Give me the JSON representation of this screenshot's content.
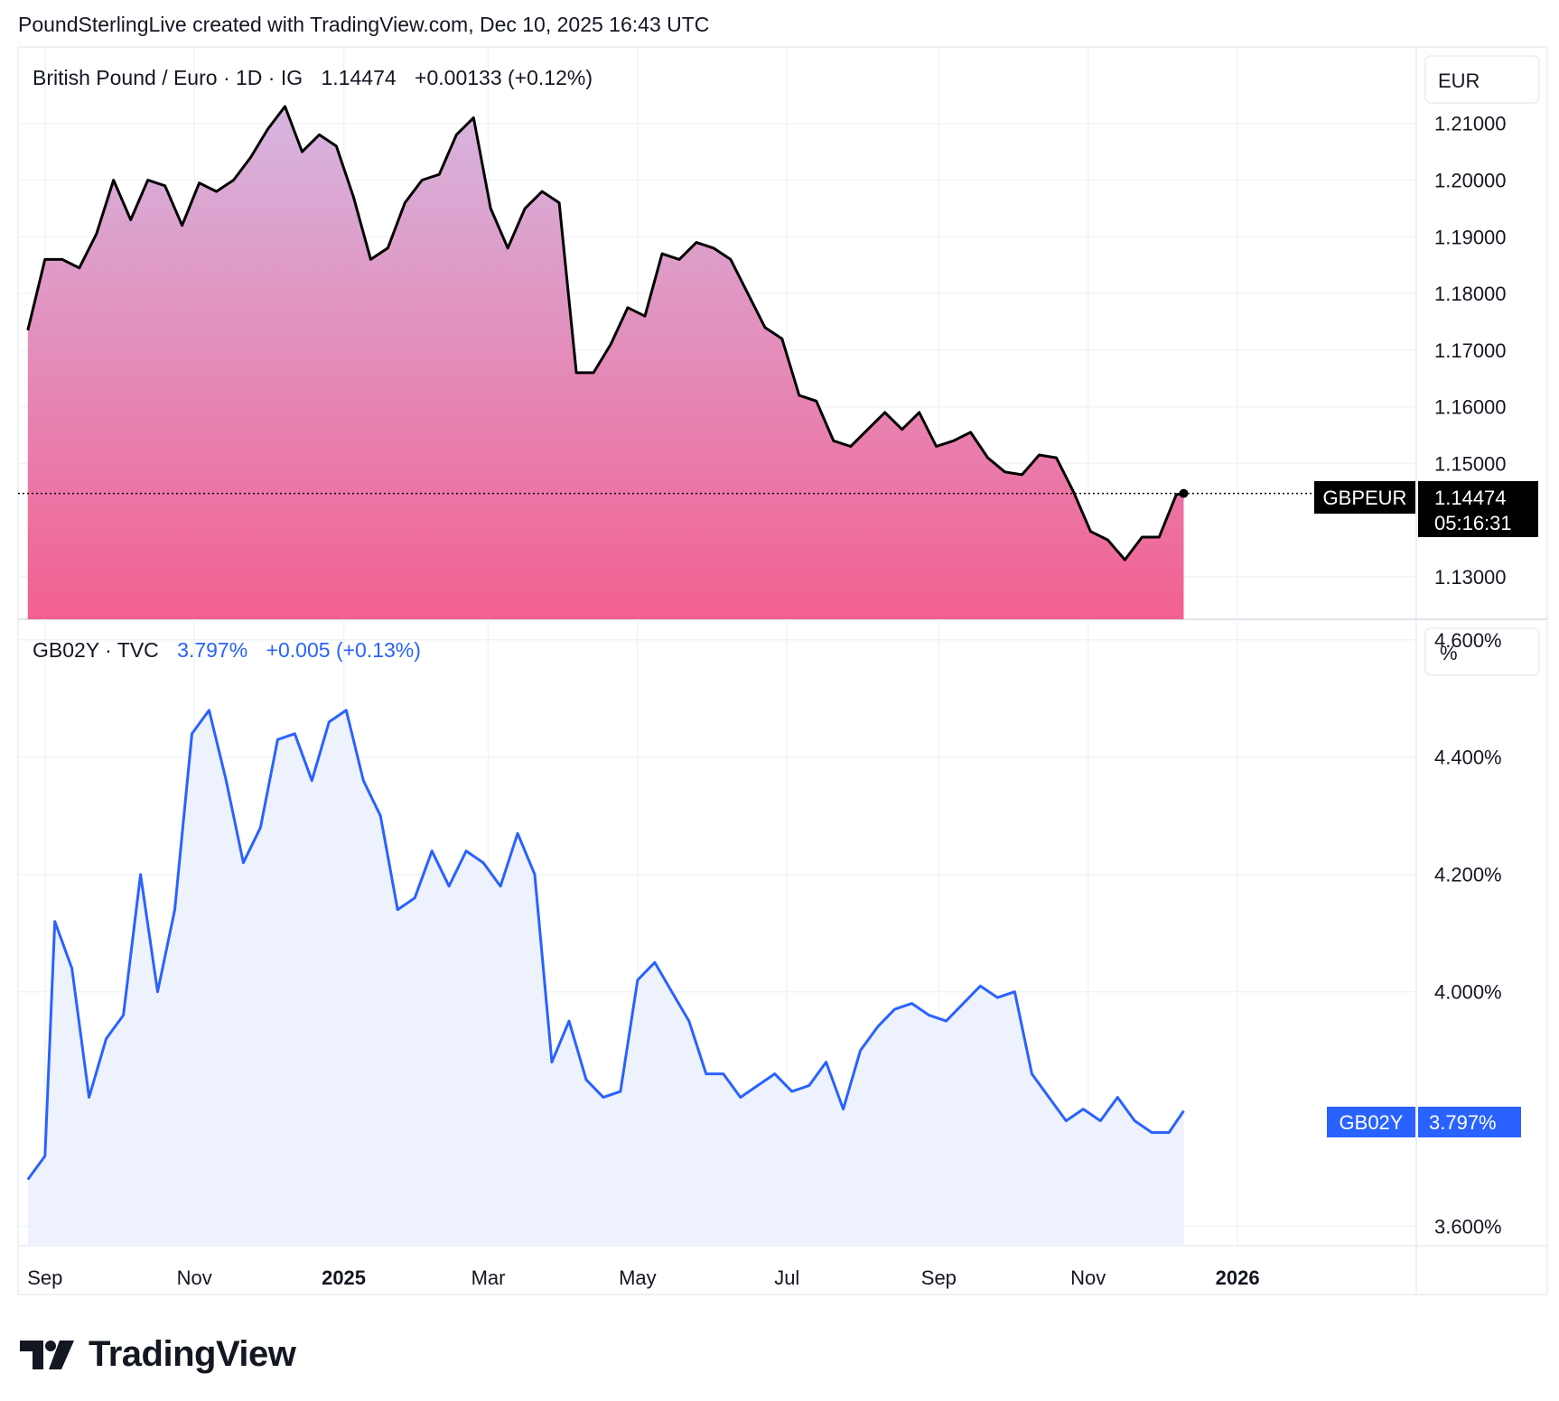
{
  "header": {
    "credit": "PoundSterlingLive created with TradingView.com, Dec 10, 2025 16:43 UTC"
  },
  "logo": {
    "text": "TradingView",
    "icon": "tradingview-logo-icon"
  },
  "colors": {
    "gbpeur_line": "#000000",
    "gbpeur_fill_top": "#d6b6e0",
    "gbpeur_fill_bottom": "#f26091",
    "gb02y_line": "#2962ff",
    "gb02y_fill": "#eef2fd",
    "grid": "#f0f3fa",
    "label_bg_dark": "#000000",
    "label_bg_blue": "#2962ff"
  },
  "x_axis": {
    "ticks": [
      {
        "label": "Sep",
        "bold": false,
        "date": "2024-09-01"
      },
      {
        "label": "Nov",
        "bold": false,
        "date": "2024-11-01"
      },
      {
        "label": "2025",
        "bold": true,
        "date": "2025-01-01"
      },
      {
        "label": "Mar",
        "bold": false,
        "date": "2025-03-01"
      },
      {
        "label": "May",
        "bold": false,
        "date": "2025-05-01"
      },
      {
        "label": "Jul",
        "bold": false,
        "date": "2025-07-01"
      },
      {
        "label": "Sep",
        "bold": false,
        "date": "2025-09-01"
      },
      {
        "label": "Nov",
        "bold": false,
        "date": "2025-11-01"
      },
      {
        "label": "2026",
        "bold": true,
        "date": "2026-01-01"
      }
    ]
  },
  "chart_data": [
    {
      "type": "area",
      "legend": {
        "symbol": "British Pound / Euro · 1D · IG",
        "last": "1.14474",
        "change": "+0.00133 (+0.12%)"
      },
      "unit_label": "EUR",
      "price_label": {
        "name": "GBPEUR",
        "value": "1.14474",
        "countdown": "05:16:31"
      },
      "y_ticks": [
        "1.21000",
        "1.20000",
        "1.19000",
        "1.18000",
        "1.17000",
        "1.16000",
        "1.15000",
        "1.13000"
      ],
      "y_tick_values": [
        1.21,
        1.2,
        1.19,
        1.18,
        1.17,
        1.16,
        1.15,
        1.13
      ],
      "ylim": [
        1.1225,
        1.2235
      ],
      "x": [
        "2024-08-25",
        "2024-09-01",
        "2024-09-08",
        "2024-09-15",
        "2024-09-22",
        "2024-09-29",
        "2024-10-06",
        "2024-10-13",
        "2024-10-20",
        "2024-10-27",
        "2024-11-03",
        "2024-11-10",
        "2024-11-17",
        "2024-11-24",
        "2024-12-01",
        "2024-12-08",
        "2024-12-15",
        "2024-12-22",
        "2024-12-29",
        "2025-01-05",
        "2025-01-12",
        "2025-01-19",
        "2025-01-26",
        "2025-02-02",
        "2025-02-09",
        "2025-02-16",
        "2025-02-23",
        "2025-03-02",
        "2025-03-09",
        "2025-03-16",
        "2025-03-23",
        "2025-03-30",
        "2025-04-06",
        "2025-04-13",
        "2025-04-20",
        "2025-04-27",
        "2025-05-04",
        "2025-05-11",
        "2025-05-18",
        "2025-05-25",
        "2025-06-01",
        "2025-06-08",
        "2025-06-15",
        "2025-06-22",
        "2025-06-29",
        "2025-07-06",
        "2025-07-13",
        "2025-07-20",
        "2025-07-27",
        "2025-08-03",
        "2025-08-10",
        "2025-08-17",
        "2025-08-24",
        "2025-08-31",
        "2025-09-07",
        "2025-09-14",
        "2025-09-21",
        "2025-09-28",
        "2025-10-05",
        "2025-10-12",
        "2025-10-19",
        "2025-10-26",
        "2025-11-02",
        "2025-11-09",
        "2025-11-16",
        "2025-11-23",
        "2025-11-30",
        "2025-12-07",
        "2025-12-10"
      ],
      "values": [
        1.1735,
        1.186,
        1.186,
        1.1845,
        1.1905,
        1.2,
        1.193,
        1.2,
        1.199,
        1.192,
        1.1995,
        1.198,
        1.2,
        1.204,
        1.209,
        1.213,
        1.205,
        1.208,
        1.206,
        1.197,
        1.186,
        1.188,
        1.196,
        1.2,
        1.201,
        1.208,
        1.211,
        1.195,
        1.188,
        1.195,
        1.198,
        1.196,
        1.166,
        1.166,
        1.171,
        1.1775,
        1.176,
        1.187,
        1.186,
        1.189,
        1.188,
        1.186,
        1.18,
        1.174,
        1.172,
        1.162,
        1.161,
        1.154,
        1.153,
        1.156,
        1.159,
        1.156,
        1.159,
        1.153,
        1.154,
        1.1555,
        1.151,
        1.1485,
        1.148,
        1.1515,
        1.151,
        1.145,
        1.138,
        1.1365,
        1.133,
        1.137,
        1.137,
        1.1445,
        1.1447
      ],
      "xlabel": "",
      "ylabel": ""
    },
    {
      "type": "area",
      "legend": {
        "symbol": "GB02Y · TVC",
        "last": "3.797%",
        "change": "+0.005 (+0.13%)"
      },
      "unit_label": "%",
      "price_label": {
        "name": "GB02Y",
        "value": "3.797%"
      },
      "y_ticks": [
        "4.600%",
        "4.400%",
        "4.200%",
        "4.000%",
        "3.600%"
      ],
      "y_tick_values": [
        4.6,
        4.4,
        4.2,
        4.0,
        3.6
      ],
      "ylim": [
        3.567,
        4.632
      ],
      "x": [
        "2024-08-25",
        "2024-09-01",
        "2024-09-05",
        "2024-09-12",
        "2024-09-19",
        "2024-09-26",
        "2024-10-03",
        "2024-10-10",
        "2024-10-17",
        "2024-10-24",
        "2024-10-31",
        "2024-11-07",
        "2024-11-14",
        "2024-11-21",
        "2024-11-28",
        "2024-12-05",
        "2024-12-12",
        "2024-12-19",
        "2024-12-26",
        "2025-01-02",
        "2025-01-09",
        "2025-01-16",
        "2025-01-23",
        "2025-01-30",
        "2025-02-06",
        "2025-02-13",
        "2025-02-20",
        "2025-02-27",
        "2025-03-06",
        "2025-03-13",
        "2025-03-20",
        "2025-03-27",
        "2025-04-03",
        "2025-04-10",
        "2025-04-17",
        "2025-04-24",
        "2025-05-01",
        "2025-05-08",
        "2025-05-15",
        "2025-05-22",
        "2025-05-29",
        "2025-06-05",
        "2025-06-12",
        "2025-06-19",
        "2025-06-26",
        "2025-07-03",
        "2025-07-10",
        "2025-07-17",
        "2025-07-24",
        "2025-07-31",
        "2025-08-07",
        "2025-08-14",
        "2025-08-21",
        "2025-08-28",
        "2025-09-04",
        "2025-09-11",
        "2025-09-18",
        "2025-09-25",
        "2025-10-02",
        "2025-10-09",
        "2025-10-16",
        "2025-10-23",
        "2025-10-30",
        "2025-11-06",
        "2025-11-13",
        "2025-11-20",
        "2025-11-27",
        "2025-12-04",
        "2025-12-10"
      ],
      "values": [
        3.68,
        3.72,
        4.12,
        4.04,
        3.82,
        3.92,
        3.96,
        4.2,
        4.0,
        4.14,
        4.44,
        4.48,
        4.36,
        4.22,
        4.28,
        4.43,
        4.44,
        4.36,
        4.46,
        4.48,
        4.36,
        4.3,
        4.14,
        4.16,
        4.24,
        4.18,
        4.24,
        4.22,
        4.18,
        4.27,
        4.2,
        3.88,
        3.95,
        3.85,
        3.82,
        3.83,
        4.02,
        4.05,
        4.0,
        3.95,
        3.86,
        3.86,
        3.82,
        3.84,
        3.86,
        3.83,
        3.84,
        3.88,
        3.8,
        3.9,
        3.94,
        3.97,
        3.98,
        3.96,
        3.95,
        3.98,
        4.01,
        3.99,
        4.0,
        3.86,
        3.82,
        3.78,
        3.8,
        3.78,
        3.82,
        3.78,
        3.76,
        3.76,
        3.797
      ],
      "xlabel": "",
      "ylabel": ""
    }
  ]
}
